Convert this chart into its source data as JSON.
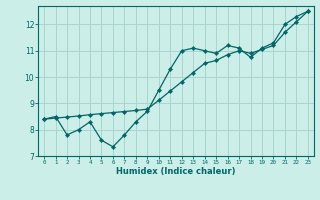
{
  "title": "",
  "xlabel": "Humidex (Indice chaleur)",
  "ylabel": "",
  "background_color": "#cceee8",
  "grid_color": "#aad4ce",
  "line_color": "#006666",
  "xlim": [
    -0.5,
    23.5
  ],
  "ylim": [
    7.0,
    12.7
  ],
  "xticks": [
    0,
    1,
    2,
    3,
    4,
    5,
    6,
    7,
    8,
    9,
    10,
    11,
    12,
    13,
    14,
    15,
    16,
    17,
    18,
    19,
    20,
    21,
    22,
    23
  ],
  "yticks": [
    7,
    8,
    9,
    10,
    11,
    12
  ],
  "line1_x": [
    0,
    1,
    2,
    3,
    4,
    5,
    6,
    7,
    8,
    9,
    10,
    11,
    12,
    13,
    14,
    15,
    16,
    17,
    18,
    19,
    20,
    21,
    22,
    23
  ],
  "line1_y": [
    8.4,
    8.5,
    7.8,
    8.0,
    8.3,
    7.6,
    7.35,
    7.8,
    8.3,
    8.7,
    9.5,
    10.3,
    11.0,
    11.1,
    11.0,
    10.9,
    11.2,
    11.1,
    10.75,
    11.1,
    11.3,
    12.0,
    12.3,
    12.5
  ],
  "line2_x": [
    0,
    1,
    2,
    3,
    4,
    5,
    6,
    7,
    8,
    9,
    10,
    11,
    12,
    13,
    14,
    15,
    16,
    17,
    18,
    19,
    20,
    21,
    22,
    23
  ],
  "line2_y": [
    8.4,
    8.44,
    8.48,
    8.52,
    8.57,
    8.61,
    8.65,
    8.69,
    8.73,
    8.78,
    9.12,
    9.47,
    9.82,
    10.17,
    10.52,
    10.63,
    10.85,
    11.0,
    10.9,
    11.05,
    11.2,
    11.7,
    12.1,
    12.5
  ]
}
